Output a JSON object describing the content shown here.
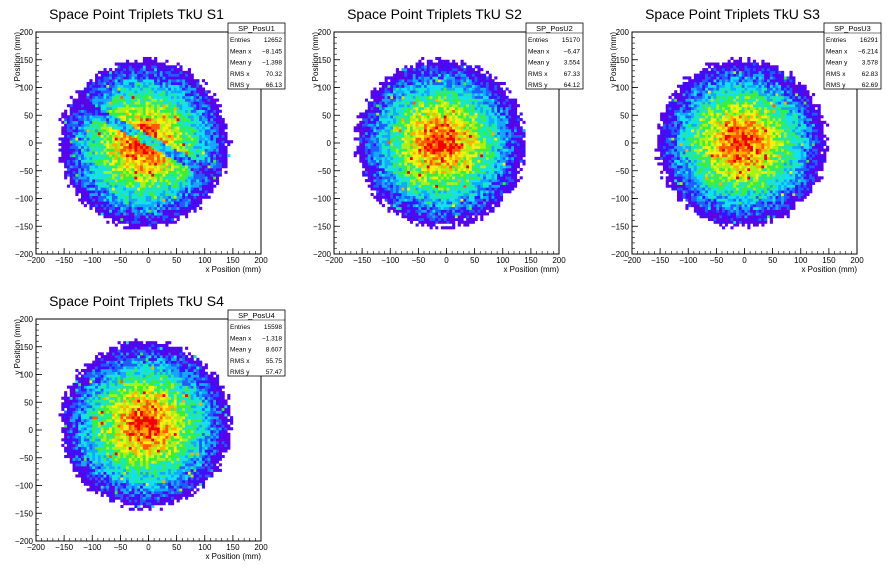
{
  "chart_data": [
    {
      "type": "heatmap",
      "title": "Space Point Triplets TkU S1",
      "xlabel": "x Position (mm)",
      "ylabel": "y Position (mm)",
      "xlim": [
        -200,
        200
      ],
      "ylim": [
        -200,
        200
      ],
      "xticks": [
        -200,
        -150,
        -100,
        -50,
        0,
        50,
        100,
        150,
        200
      ],
      "yticks": [
        -200,
        -150,
        -100,
        -50,
        0,
        50,
        100,
        150,
        200
      ],
      "stats": {
        "name": "SP_PosU1",
        "rows": [
          {
            "label": "Entries",
            "value": "12652"
          },
          {
            "label": "Mean x",
            "value": "-8.145"
          },
          {
            "label": "Mean y",
            "value": "-1.398"
          },
          {
            "label": "RMS x",
            "value": "70.32"
          },
          {
            "label": "RMS y",
            "value": "66.13"
          }
        ]
      },
      "distribution": {
        "center_x": -8,
        "center_y": -1,
        "radius": 150,
        "band": true
      }
    },
    {
      "type": "heatmap",
      "title": "Space Point Triplets TkU S2",
      "xlabel": "x Position (mm)",
      "ylabel": "y Position (mm)",
      "xlim": [
        -200,
        200
      ],
      "ylim": [
        -200,
        200
      ],
      "xticks": [
        -200,
        -150,
        -100,
        -50,
        0,
        50,
        100,
        150,
        200
      ],
      "yticks": [
        -200,
        -150,
        -100,
        -50,
        0,
        50,
        100,
        150,
        200
      ],
      "stats": {
        "name": "SP_PosU2",
        "rows": [
          {
            "label": "Entries",
            "value": "15170"
          },
          {
            "label": "Mean x",
            "value": "-6.47"
          },
          {
            "label": "Mean y",
            "value": "3.554"
          },
          {
            "label": "RMS x",
            "value": "67.33"
          },
          {
            "label": "RMS y",
            "value": "64.12"
          }
        ]
      },
      "distribution": {
        "center_x": -10,
        "center_y": 0,
        "radius": 150,
        "band": false
      }
    },
    {
      "type": "heatmap",
      "title": "Space Point Triplets TkU S3",
      "xlabel": "x Position (mm)",
      "ylabel": "y Position (mm)",
      "xlim": [
        -200,
        200
      ],
      "ylim": [
        -200,
        200
      ],
      "xticks": [
        -200,
        -150,
        -100,
        -50,
        0,
        50,
        100,
        150,
        200
      ],
      "yticks": [
        -200,
        -150,
        -100,
        -50,
        0,
        50,
        100,
        150,
        200
      ],
      "stats": {
        "name": "SP_PosU3",
        "rows": [
          {
            "label": "Entries",
            "value": "16291"
          },
          {
            "label": "Mean x",
            "value": "-6.214"
          },
          {
            "label": "Mean y",
            "value": "3.578"
          },
          {
            "label": "RMS x",
            "value": "62.83"
          },
          {
            "label": "RMS y",
            "value": "62.69"
          }
        ]
      },
      "distribution": {
        "center_x": -5,
        "center_y": 0,
        "radius": 150,
        "band": false
      }
    },
    {
      "type": "heatmap",
      "title": "Space Point Triplets TkU S4",
      "xlabel": "x Position (mm)",
      "ylabel": "y Position (mm)",
      "xlim": [
        -200,
        200
      ],
      "ylim": [
        -200,
        200
      ],
      "xticks": [
        -200,
        -150,
        -100,
        -50,
        0,
        50,
        100,
        150,
        200
      ],
      "yticks": [
        -200,
        -150,
        -100,
        -50,
        0,
        50,
        100,
        150,
        200
      ],
      "stats": {
        "name": "SP_PosU4",
        "rows": [
          {
            "label": "Entries",
            "value": "15598"
          },
          {
            "label": "Mean x",
            "value": "-1.318"
          },
          {
            "label": "Mean y",
            "value": "8.607"
          },
          {
            "label": "RMS x",
            "value": "55.75"
          },
          {
            "label": "RMS y",
            "value": "57.47"
          }
        ]
      },
      "distribution": {
        "center_x": -5,
        "center_y": 10,
        "radius": 150,
        "band": false
      }
    }
  ],
  "colors": {
    "palette": [
      "#5b00e6",
      "#3a10ff",
      "#1f5dff",
      "#13a7ff",
      "#13e0f0",
      "#1ee8a8",
      "#3cee3c",
      "#a8f01a",
      "#f4f012",
      "#ffae00",
      "#ff5a00",
      "#ee0000"
    ],
    "frame": "#000000",
    "background": "#ffffff"
  }
}
